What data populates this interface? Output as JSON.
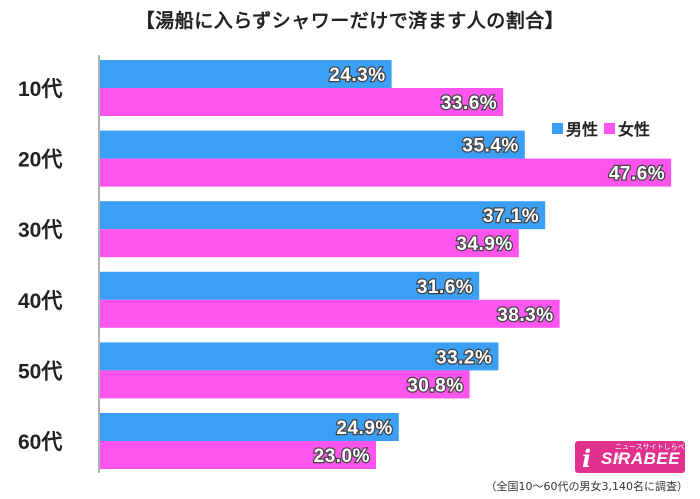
{
  "chart_data": {
    "type": "bar",
    "orientation": "horizontal",
    "title": "【湯船に入らずシャワーだけで済ます人の割合】",
    "categories": [
      "10代",
      "20代",
      "30代",
      "40代",
      "50代",
      "60代"
    ],
    "series": [
      {
        "name": "男性",
        "color": "#3b9ff5",
        "values": [
          24.3,
          35.4,
          37.1,
          31.6,
          33.2,
          24.9
        ],
        "labels": [
          "24.3%",
          "35.4%",
          "37.1%",
          "31.6%",
          "33.2%",
          "24.9%"
        ]
      },
      {
        "name": "女性",
        "color": "#ff55ee",
        "values": [
          33.6,
          47.6,
          34.9,
          38.3,
          30.8,
          23.0
        ],
        "labels": [
          "33.6%",
          "47.6%",
          "34.9%",
          "38.3%",
          "30.8%",
          "23.0%"
        ]
      }
    ],
    "legend_position": "right",
    "grid": false
  },
  "note": "（全国10～60代の男女3,140名に調査）",
  "logo": {
    "text": "SIRABEE",
    "initial": "i",
    "sub": "ニュースサイトしらべぇ",
    "color": "#e0318e"
  }
}
